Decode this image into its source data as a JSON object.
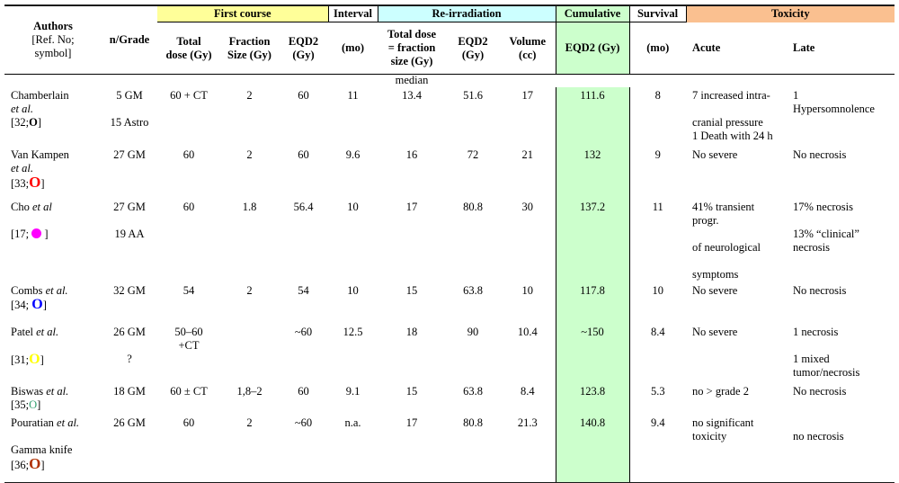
{
  "table": {
    "headers": {
      "authors_title": "Authors",
      "authors_sub1": "[Ref. No;",
      "authors_sub2": "symbol]",
      "n_grade": "n/Grade",
      "first_course": "First course",
      "interval": "Interval",
      "re_irradiation": "Re-irradiation",
      "cumulative": "Cumulative",
      "survival": "Survival",
      "toxicity": "Toxicity"
    },
    "sub_headers": [
      {
        "lines": [
          "Total",
          "dose (Gy)"
        ],
        "cls": "cc"
      },
      {
        "lines": [
          "Fraction",
          "Size (Gy)"
        ],
        "cls": "cc"
      },
      {
        "lines": [
          "EQD2",
          "(Gy)"
        ],
        "cls": "cc"
      },
      {
        "lines": [
          "(mo)"
        ],
        "cls": "cc"
      },
      {
        "lines": [
          "Total dose",
          "= fraction",
          "size (Gy)"
        ],
        "cls": "cc"
      },
      {
        "lines": [
          "EQD2",
          "(Gy)"
        ],
        "cls": "cc"
      },
      {
        "lines": [
          "Volume",
          "(cc)"
        ],
        "cls": "cc"
      },
      {
        "lines": [
          "EQD2 (Gy)"
        ],
        "cls": "cc cum"
      },
      {
        "lines": [
          "(mo)"
        ],
        "cls": "cc"
      },
      {
        "lines": [
          "Acute"
        ],
        "cls": "tx"
      },
      {
        "lines": [
          "Late"
        ],
        "cls": "tx"
      }
    ],
    "median_label": "median",
    "colors": {
      "first_course_band": "#FFFF99",
      "re_irradiation_band": "#CCFFFF",
      "cumulative_band": "#CCFFCC",
      "toxicity_band": "#FAC090"
    },
    "rows": [
      {
        "author": [
          [
            {
              "t": "Chamberlain"
            }
          ],
          [
            {
              "t": "et al.",
              "it": true
            }
          ],
          [
            {
              "t": "[32;"
            },
            {
              "t": "O",
              "b": true,
              "color": "#000000"
            },
            {
              "t": "]"
            }
          ]
        ],
        "n_grade": [
          "5 GM",
          "",
          "15 Astro"
        ],
        "first_total": [
          "60 + CT"
        ],
        "first_fraction": [
          "2"
        ],
        "first_eqd2": [
          "60"
        ],
        "interval": [
          "11"
        ],
        "re_total": [
          "13.4"
        ],
        "re_eqd2": [
          "51.6"
        ],
        "re_volume": [
          "17"
        ],
        "cumulative": [
          "111.6"
        ],
        "survival": [
          "8"
        ],
        "acute": [
          "7 increased intra-",
          "",
          "cranial pressure",
          "1 Death with 24 h"
        ],
        "late": [
          "1",
          "Hypersomnolence"
        ]
      },
      {
        "author": [
          [
            {
              "t": "Van Kampen"
            }
          ],
          [
            {
              "t": "et al.",
              "it": true
            }
          ],
          [
            {
              "t": "[33;"
            },
            {
              "t": "O",
              "b": true,
              "color": "#FF0000",
              "fs": 17
            },
            {
              "t": "]"
            }
          ]
        ],
        "n_grade": [
          "27 GM"
        ],
        "first_total": [
          "60"
        ],
        "first_fraction": [
          "2"
        ],
        "first_eqd2": [
          "60"
        ],
        "interval": [
          "9.6"
        ],
        "re_total": [
          "16"
        ],
        "re_eqd2": [
          "72"
        ],
        "re_volume": [
          "21"
        ],
        "cumulative": [
          "132"
        ],
        "survival": [
          "9"
        ],
        "acute": [
          "No severe"
        ],
        "late": [
          "No necrosis"
        ]
      },
      {
        "author": [
          [
            {
              "t": "Cho "
            },
            {
              "t": "et al",
              "it": true
            }
          ],
          "",
          [
            {
              "t": "[17; "
            },
            {
              "dot": true,
              "color": "#FF00FF"
            },
            {
              "t": " ]"
            }
          ]
        ],
        "n_grade": [
          "27 GM",
          "",
          "19 AA"
        ],
        "first_total": [
          "60"
        ],
        "first_fraction": [
          "1.8"
        ],
        "first_eqd2": [
          "56.4"
        ],
        "interval": [
          "10"
        ],
        "re_total": [
          "17"
        ],
        "re_eqd2": [
          "80.8"
        ],
        "re_volume": [
          "30"
        ],
        "cumulative": [
          "137.2"
        ],
        "survival": [
          "11"
        ],
        "acute": [
          "41% transient",
          "progr.",
          "",
          "of neurological",
          "",
          "symptoms"
        ],
        "late": [
          "17% necrosis",
          "",
          "13% “clinical”",
          "necrosis"
        ]
      },
      {
        "author": [
          [
            {
              "t": "Combs "
            },
            {
              "t": "et al.",
              "it": true
            }
          ],
          [
            {
              "t": "[34; "
            },
            {
              "t": "O",
              "b": true,
              "color": "#0000FF",
              "fs": 16
            },
            {
              "t": "]"
            }
          ]
        ],
        "n_grade": [
          "32 GM"
        ],
        "first_total": [
          "54"
        ],
        "first_fraction": [
          "2"
        ],
        "first_eqd2": [
          "54"
        ],
        "interval": [
          "10"
        ],
        "re_total": [
          "15"
        ],
        "re_eqd2": [
          "63.8"
        ],
        "re_volume": [
          "10"
        ],
        "cumulative": [
          "117.8"
        ],
        "survival": [
          "10"
        ],
        "acute": [
          "No severe"
        ],
        "late": [
          "No necrosis"
        ]
      },
      {
        "author": [
          [
            {
              "t": "Patel "
            },
            {
              "t": "et al.",
              "it": true
            }
          ],
          "",
          [
            {
              "t": "[31;"
            },
            {
              "t": "O",
              "b": true,
              "color": "#FFFF00",
              "fs": 16
            },
            {
              "t": "]"
            }
          ]
        ],
        "n_grade": [
          "26 GM",
          "",
          "?"
        ],
        "first_total": [
          "50–60",
          "+CT"
        ],
        "first_fraction": [
          ""
        ],
        "first_eqd2": [
          "~60"
        ],
        "interval": [
          "12.5"
        ],
        "re_total": [
          "18"
        ],
        "re_eqd2": [
          "90"
        ],
        "re_volume": [
          "10.4"
        ],
        "cumulative": [
          "~150"
        ],
        "survival": [
          "8.4"
        ],
        "acute": [
          "No severe"
        ],
        "late": [
          "1 necrosis",
          "",
          "1 mixed",
          "tumor/necrosis"
        ]
      },
      {
        "author": [
          [
            {
              "t": "Biswas "
            },
            {
              "t": "et al.",
              "it": true
            }
          ],
          [
            {
              "t": "[35;"
            },
            {
              "t": "O",
              "color": "#33A06F"
            },
            {
              "t": "]"
            }
          ]
        ],
        "n_grade": [
          "18 GM"
        ],
        "first_total": [
          "60 ± CT"
        ],
        "first_fraction": [
          "1,8–2"
        ],
        "first_eqd2": [
          "60"
        ],
        "interval": [
          "9.1"
        ],
        "re_total": [
          "15"
        ],
        "re_eqd2": [
          "63.8"
        ],
        "re_volume": [
          "8.4"
        ],
        "cumulative": [
          "123.8"
        ],
        "survival": [
          "5.3"
        ],
        "acute": [
          "no > grade 2"
        ],
        "late": [
          "No necrosis"
        ]
      },
      {
        "author": [
          [
            {
              "t": "Pouratian "
            },
            {
              "t": "et al.",
              "it": true
            }
          ],
          "",
          [
            {
              "t": "Gamma knife"
            }
          ],
          [
            {
              "t": "[36;"
            },
            {
              "t": "O",
              "b": true,
              "color": "#B03000",
              "fs": 17
            },
            {
              "t": "]"
            }
          ]
        ],
        "n_grade": [
          "26 GM"
        ],
        "first_total": [
          "60"
        ],
        "first_fraction": [
          "2"
        ],
        "first_eqd2": [
          "~60"
        ],
        "interval": [
          "n.a."
        ],
        "re_total": [
          "17"
        ],
        "re_eqd2": [
          "80.8"
        ],
        "re_volume": [
          "21.3"
        ],
        "cumulative": [
          "140.8"
        ],
        "survival": [
          "9.4"
        ],
        "acute": [
          "no significant",
          "toxicity"
        ],
        "late": [
          "",
          "no necrosis"
        ]
      }
    ]
  }
}
